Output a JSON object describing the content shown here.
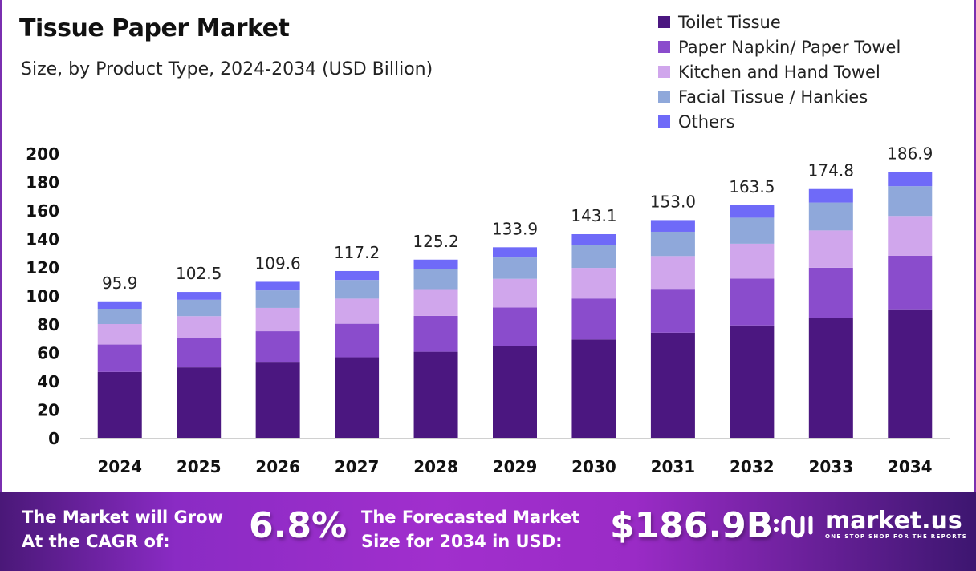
{
  "chart_data": {
    "type": "bar",
    "stacked": true,
    "title": "Tissue Paper Market",
    "subtitle": "Size, by Product Type, 2024-2034 (USD Billion)",
    "categories": [
      "2024",
      "2025",
      "2026",
      "2027",
      "2028",
      "2029",
      "2030",
      "2031",
      "2032",
      "2033",
      "2034"
    ],
    "series": [
      {
        "name": "Toilet Tissue",
        "color": "#4b1780",
        "values": [
          46.3,
          49.5,
          52.9,
          56.6,
          60.5,
          64.7,
          69.1,
          73.9,
          79.0,
          84.4,
          90.3
        ]
      },
      {
        "name": "Paper Napkin/ Paper Towel",
        "color": "#8a4ccc",
        "values": [
          19.3,
          20.6,
          22.0,
          23.6,
          25.2,
          26.9,
          28.8,
          30.8,
          32.9,
          35.1,
          37.6
        ]
      },
      {
        "name": "Kitchen and Hand Towel",
        "color": "#d0a6ec",
        "values": [
          14.4,
          15.4,
          16.4,
          17.6,
          18.8,
          20.1,
          21.5,
          23.0,
          24.5,
          26.2,
          28.0
        ]
      },
      {
        "name": "Facial Tissue / Hankies",
        "color": "#8fa8da",
        "values": [
          10.7,
          11.5,
          12.3,
          13.1,
          14.0,
          15.0,
          16.0,
          17.1,
          18.3,
          19.6,
          20.9
        ]
      },
      {
        "name": "Others",
        "color": "#6f6af8",
        "values": [
          5.2,
          5.5,
          6.0,
          6.3,
          6.7,
          7.2,
          7.7,
          8.2,
          8.8,
          9.5,
          10.1
        ]
      }
    ],
    "totals": [
      "95.9",
      "102.5",
      "109.6",
      "117.2",
      "125.2",
      "133.9",
      "143.1",
      "153.0",
      "163.5",
      "174.8",
      "186.9"
    ],
    "yticks": [
      "0",
      "20",
      "40",
      "60",
      "80",
      "100",
      "120",
      "140",
      "160",
      "180",
      "200"
    ],
    "ylim": [
      0,
      200
    ],
    "grid": false,
    "legend_position": "top-right"
  },
  "banner": {
    "cagr_label_1": "The Market will Grow",
    "cagr_label_2": "At the CAGR of:",
    "cagr_value": "6.8%",
    "forecast_label_1": "The Forecasted Market",
    "forecast_label_2": "Size for 2034 in USD:",
    "forecast_value": "$186.9B",
    "logo_name": "market.us",
    "logo_tagline": "ONE STOP SHOP FOR THE REPORTS"
  }
}
